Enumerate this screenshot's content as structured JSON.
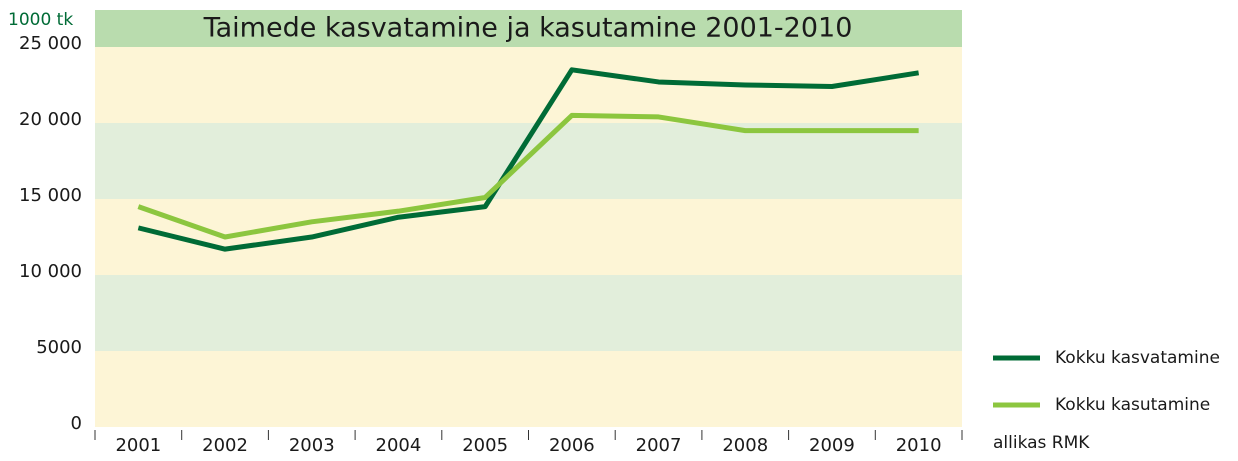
{
  "chart_data": {
    "type": "line",
    "title": "Taimede kasvatamine ja kasutamine 2001-2010",
    "y_axis_label": "1000 tk",
    "source": "allikas RMK",
    "categories": [
      "2001",
      "2002",
      "2003",
      "2004",
      "2005",
      "2006",
      "2007",
      "2008",
      "2009",
      "2010"
    ],
    "series": [
      {
        "name": "Kokku kasvatamine",
        "color": "#006b36",
        "values": [
          13100,
          11700,
          12500,
          13800,
          14500,
          23500,
          22700,
          22500,
          22400,
          23300
        ]
      },
      {
        "name": "Kokku kasutamine",
        "color": "#8cc63f",
        "values": [
          14500,
          12500,
          13500,
          14200,
          15100,
          20500,
          20400,
          19500,
          19500,
          19500
        ]
      }
    ],
    "ylim": [
      0,
      25000
    ],
    "yticks": [
      0,
      5000,
      {
        "value": 10000,
        "label": "10 000"
      },
      {
        "value": 15000,
        "label": "15 000"
      },
      {
        "value": 20000,
        "label": "20 000"
      },
      {
        "value": 25000,
        "label": "25 000"
      }
    ],
    "legend": "right"
  }
}
